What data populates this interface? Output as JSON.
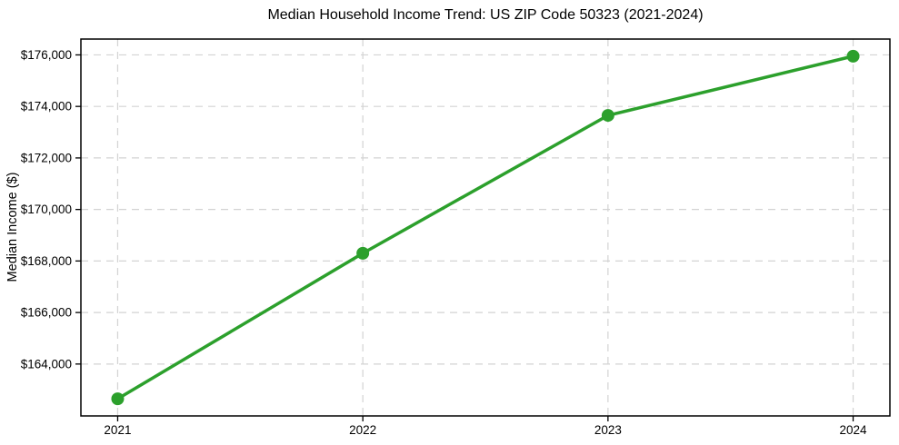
{
  "chart_data": {
    "type": "line",
    "title": "Median Household Income Trend: US ZIP Code 50323 (2021-2024)",
    "xlabel": "",
    "ylabel": "Median Income ($)",
    "x": [
      2021,
      2022,
      2023,
      2024
    ],
    "x_tick_labels": [
      "2021",
      "2022",
      "2023",
      "2024"
    ],
    "series": [
      {
        "name": "Median Household Income",
        "values": [
          162650,
          168300,
          173650,
          175950
        ],
        "color": "#2ca02c",
        "marker": "circle"
      }
    ],
    "y_ticks": [
      164000,
      166000,
      168000,
      170000,
      172000,
      174000,
      176000
    ],
    "y_tick_labels": [
      "$164,000",
      "$166,000",
      "$168,000",
      "$170,000",
      "$172,000",
      "$174,000",
      "$176,000"
    ],
    "xlim": [
      2020.85,
      2024.15
    ],
    "ylim": [
      161985,
      176615
    ],
    "grid": true,
    "grid_style": "dashed",
    "legend_position": "none",
    "colors": {
      "line": "#2ca02c",
      "marker": "#2ca02c",
      "grid": "#d3d3d3",
      "axis": "#000000",
      "text": "#000000",
      "background": "#ffffff"
    }
  }
}
